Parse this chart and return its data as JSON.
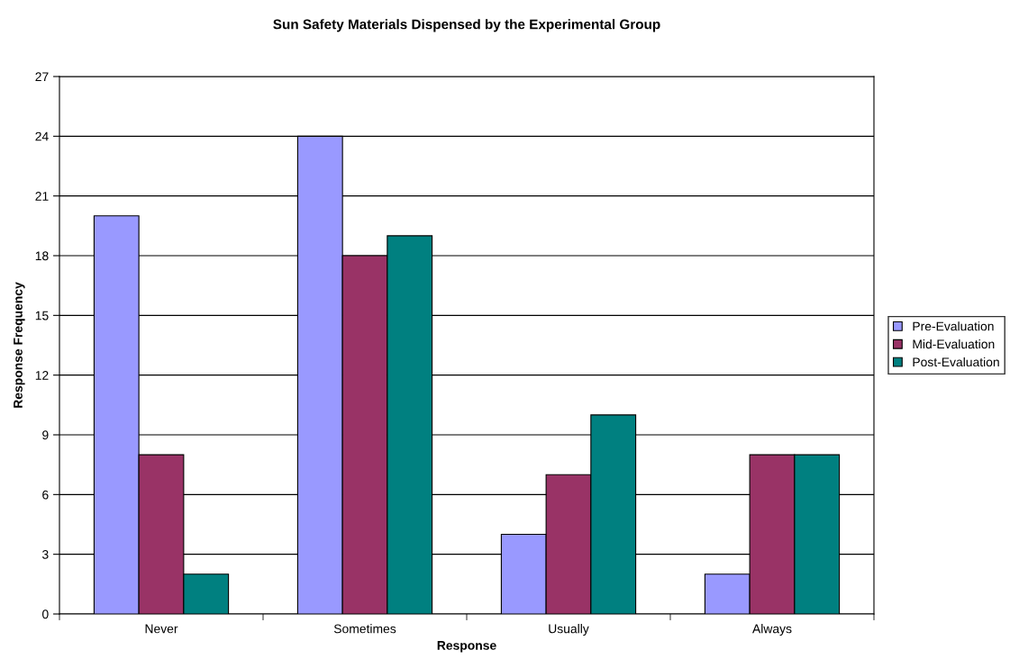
{
  "chart_data": {
    "type": "bar",
    "title": "Sun Safety Materials Dispensed by the Experimental Group",
    "xlabel": "Response",
    "ylabel": "Response Frequency",
    "categories": [
      "Never",
      "Sometimes",
      "Usually",
      "Always"
    ],
    "series": [
      {
        "name": "Pre-Evaluation",
        "color": "#9999ff",
        "values": [
          20,
          24,
          4,
          2
        ]
      },
      {
        "name": "Mid-Evaluation",
        "color": "#993366",
        "values": [
          8,
          18,
          7,
          8
        ]
      },
      {
        "name": "Post-Evaluation",
        "color": "#008080",
        "values": [
          2,
          19,
          10,
          8
        ]
      }
    ],
    "ylim": [
      0,
      27
    ],
    "yticks": [
      0,
      3,
      6,
      9,
      12,
      15,
      18,
      21,
      24,
      27
    ],
    "grid": "y",
    "legend": "right"
  }
}
